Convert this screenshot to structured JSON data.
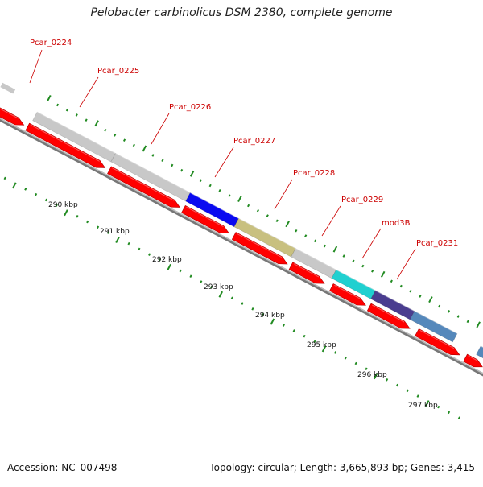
{
  "title": "Pelobacter carbinolicus DSM 2380, complete genome",
  "accession": "Accession: NC_007498",
  "summary": "Topology: circular; Length: 3,665,893 bp; Genes: 3,415",
  "colors": {
    "backbone_dark": "#777777",
    "backbone_light": "#bbbbbb",
    "tick": "#228b22",
    "label": "#cc0000",
    "kbp_label": "#111111",
    "cds": "#ff0000",
    "gene_default": "#c8c8c8"
  },
  "genes_outer": [
    {
      "name": "Pcar_0224",
      "color": "#c8c8c8"
    },
    {
      "name": "Pcar_0225",
      "color": "#c8c8c8"
    },
    {
      "name": "Pcar_0226",
      "color": "#0a0af0"
    },
    {
      "name": "Pcar_0227",
      "color": "#c8c080"
    },
    {
      "name": "Pcar_0228",
      "color": "#c8c8c8"
    },
    {
      "name": "Pcar_0229",
      "color": "#20d0d0"
    },
    {
      "name": "mod3B",
      "color": "#4a3d8f"
    },
    {
      "name": "Pcar_0231",
      "color": "#5588bb"
    },
    {
      "name": "",
      "color": "#5588bb"
    }
  ],
  "kbp_labels": [
    "290 kbp",
    "291 kbp",
    "292 kbp",
    "293 kbp",
    "294 kbp",
    "295 kbp",
    "296 kbp",
    "297 kbp"
  ]
}
